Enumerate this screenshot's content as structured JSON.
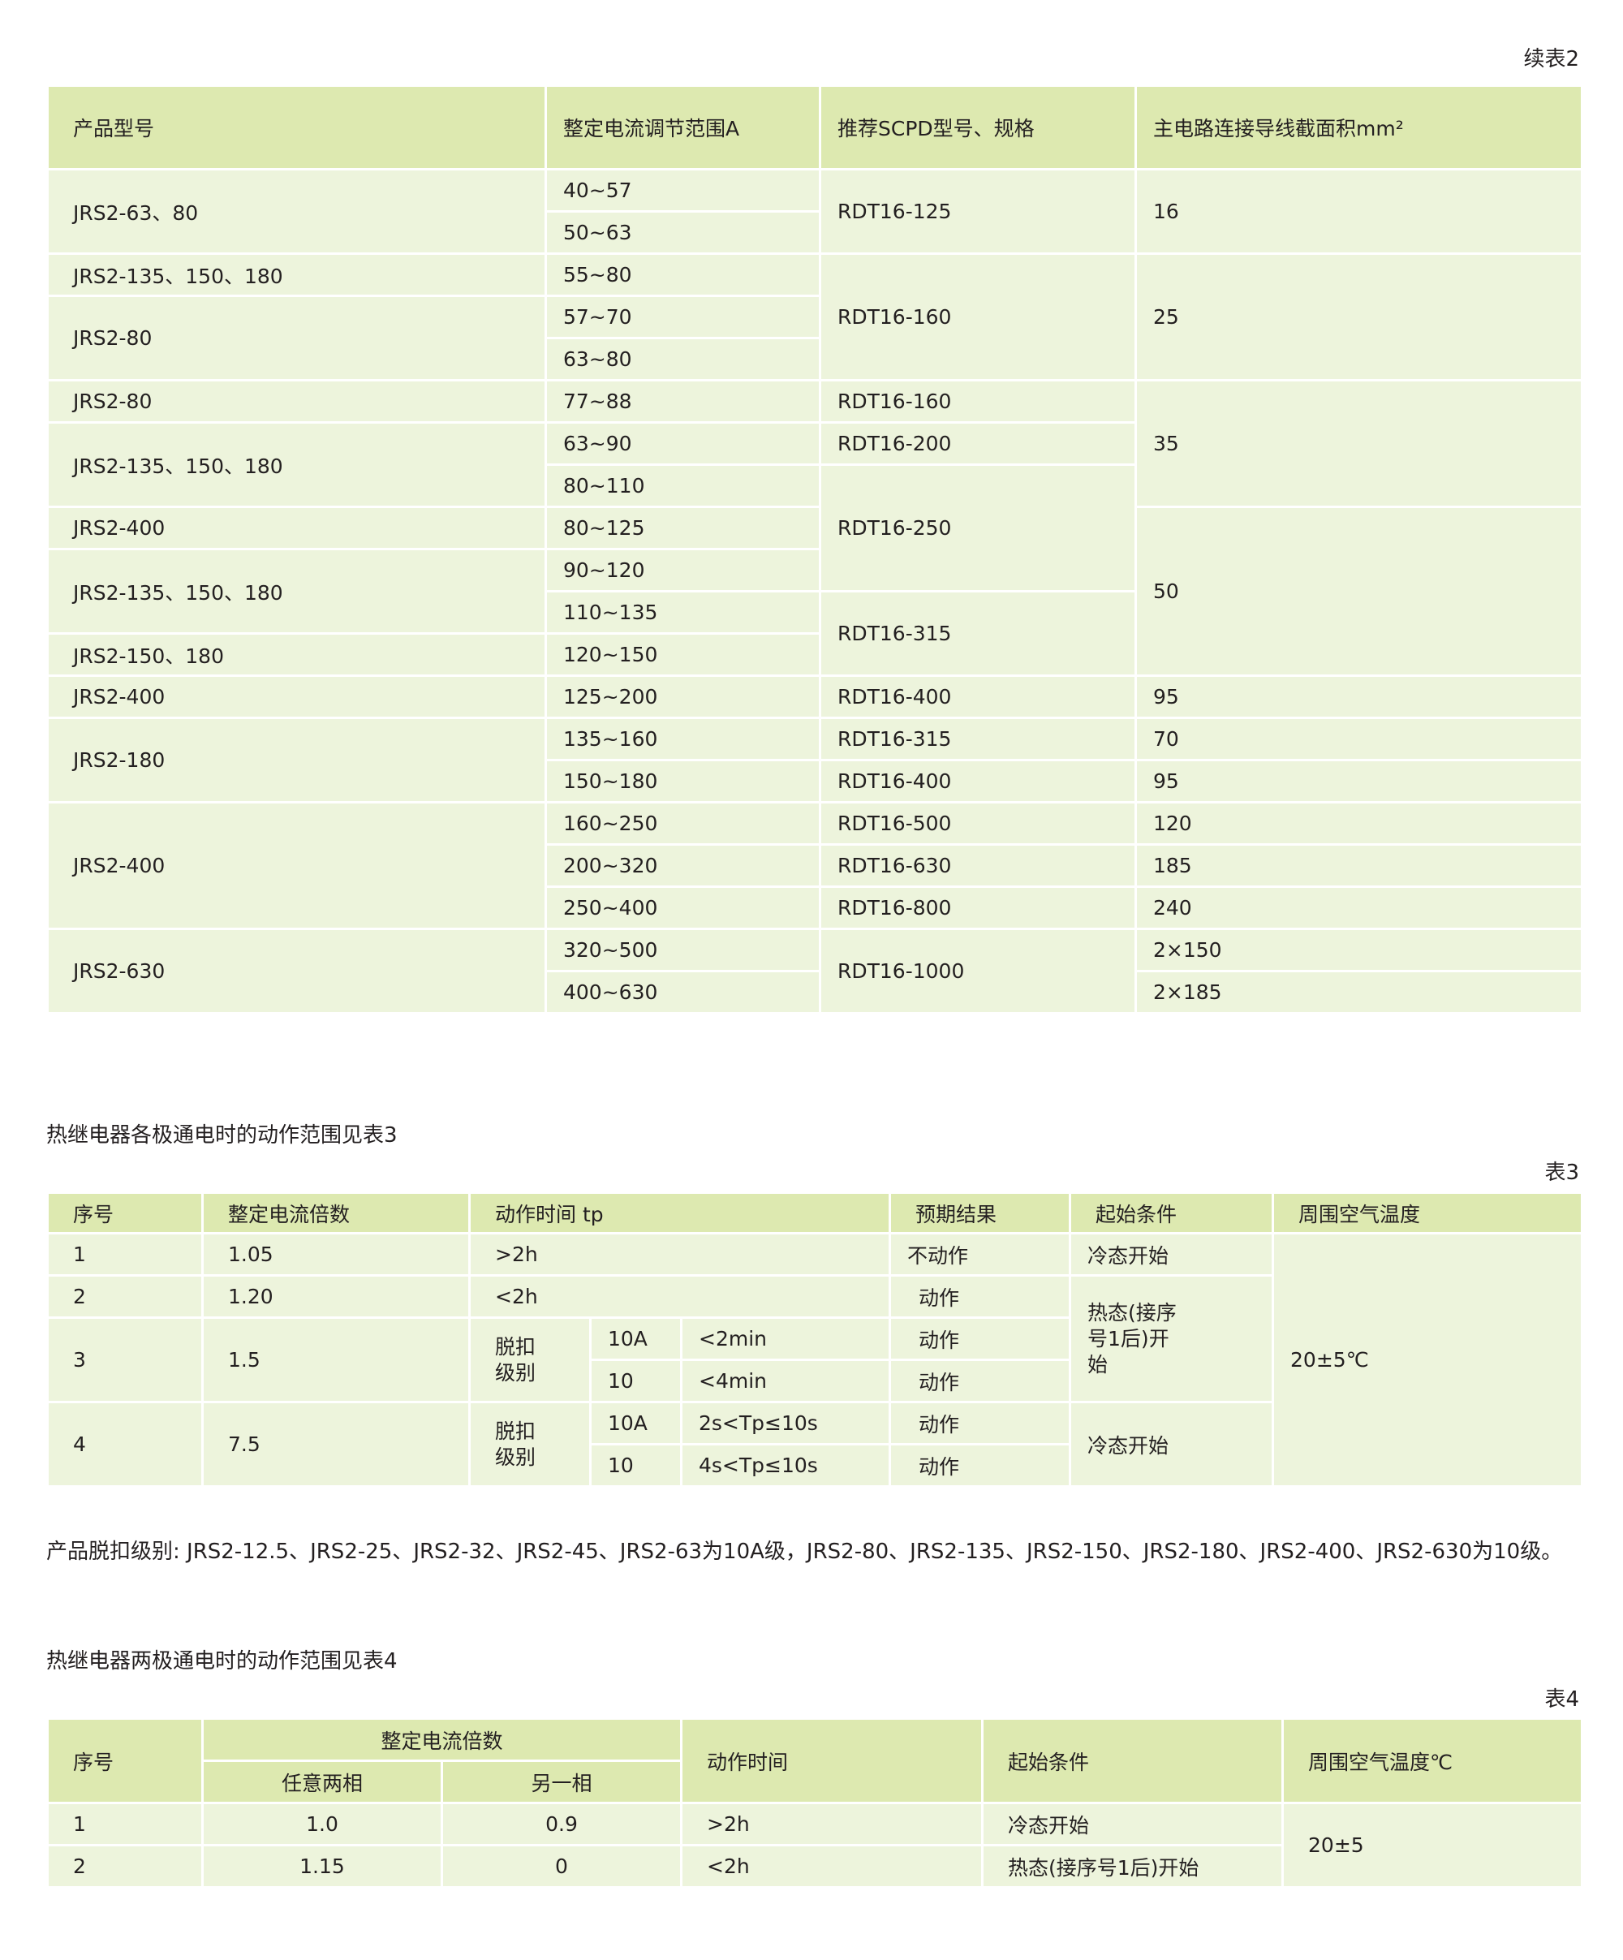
{
  "table2": {
    "caption": "续表2",
    "headers": [
      "产品型号",
      "整定电流调节范围A",
      "推荐SCPD型号、规格",
      "主电路连接导线截面积mm²"
    ],
    "rows": [
      {
        "model": "JRS2-63、80",
        "range": "40~57",
        "scpd": "RDT16-125",
        "area": "16"
      },
      {
        "range": "50~63"
      },
      {
        "model": "JRS2-135、150、180",
        "range": "55~80",
        "scpd": "RDT16-160",
        "area": "25"
      },
      {
        "model": "JRS2-80",
        "range": "57~70"
      },
      {
        "range": "63~80"
      },
      {
        "model": "JRS2-80",
        "range": "77~88",
        "scpd": "RDT16-160",
        "area": "35"
      },
      {
        "model": "JRS2-135、150、180",
        "range": "63~90",
        "scpd": "RDT16-200"
      },
      {
        "range": "80~110",
        "scpd": "RDT16-250"
      },
      {
        "model": "JRS2-400",
        "range": "80~125",
        "area": "50"
      },
      {
        "model": "JRS2-135、150、180",
        "range": "90~120"
      },
      {
        "range": "110~135",
        "scpd": "RDT16-315"
      },
      {
        "model": "JRS2-150、180",
        "range": "120~150"
      },
      {
        "model": "JRS2-400",
        "range": "125~200",
        "scpd": "RDT16-400",
        "area": "95"
      },
      {
        "model": "JRS2-180",
        "range": "135~160",
        "scpd": "RDT16-315",
        "area": "70"
      },
      {
        "range": "150~180",
        "scpd": "RDT16-400",
        "area": "95"
      },
      {
        "model": "JRS2-400",
        "range": "160~250",
        "scpd": "RDT16-500",
        "area": "120"
      },
      {
        "range": "200~320",
        "scpd": "RDT16-630",
        "area": "185"
      },
      {
        "range": "250~400",
        "scpd": "RDT16-800",
        "area": "240"
      },
      {
        "model": "JRS2-630",
        "range": "320~500",
        "scpd": "RDT16-1000",
        "area": "2×150"
      },
      {
        "range": "400~630",
        "area": "2×185"
      }
    ]
  },
  "section3_intro": "热继电器各极通电时的动作范围见表3",
  "table3": {
    "caption": "表3",
    "headers": [
      "序号",
      "整定电流倍数",
      "动作时间  tp",
      "预期结果",
      "起始条件",
      "周围空气温度"
    ],
    "trip_class_label": "脱扣级别",
    "rows": [
      {
        "no": "1",
        "multiple": "1.05",
        "time": ">2h",
        "result": "不动作",
        "start": "冷态开始"
      },
      {
        "no": "2",
        "multiple": "1.20",
        "time": "<2h",
        "result": "动作",
        "start": "热态(接序号1后)开始"
      },
      {
        "no": "3",
        "multiple": "1.5",
        "class": "10A",
        "time": "<2min",
        "result": "动作"
      },
      {
        "class": "10",
        "time": "<4min",
        "result": "动作"
      },
      {
        "no": "4",
        "multiple": "7.5",
        "class": "10A",
        "time": "2s<Tp≤10s",
        "result": "动作",
        "start": "冷态开始"
      },
      {
        "class": "10",
        "time": "4s<Tp≤10s",
        "result": "动作"
      }
    ],
    "temperature": "20±5℃"
  },
  "note": "产品脱扣级别: JRS2-12.5、JRS2-25、JRS2-32、JRS2-45、JRS2-63为10A级，JRS2-80、JRS2-135、JRS2-150、JRS2-180、JRS2-400、JRS2-630为10级。",
  "section4_intro": "热继电器两极通电时的动作范围见表4",
  "table4": {
    "caption": "表4",
    "headers": {
      "no": "序号",
      "multiple": "整定电流倍数",
      "any_two": "任意两相",
      "other": "另一相",
      "time": "动作时间",
      "start": "起始条件",
      "temp": "周围空气温度℃"
    },
    "rows": [
      {
        "no": "1",
        "any_two": "1.0",
        "other": "0.9",
        "time": ">2h",
        "start": "冷态开始"
      },
      {
        "no": "2",
        "any_two": "1.15",
        "other": "0",
        "time": "<2h",
        "start": "热态(接序号1后)开始"
      }
    ],
    "temperature": "20±5"
  }
}
